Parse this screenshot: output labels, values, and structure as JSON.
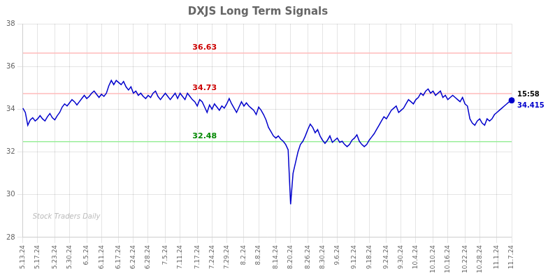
{
  "chart_data": {
    "type": "line",
    "title": "DXJS Long Term Signals",
    "categories": [
      "5.13.24",
      null,
      null,
      null,
      null,
      null,
      "5.17.24",
      null,
      null,
      null,
      null,
      null,
      null,
      "5.23.24",
      null,
      null,
      null,
      null,
      null,
      "5.30.24",
      null,
      null,
      null,
      null,
      null,
      null,
      "6.5.24",
      null,
      null,
      null,
      null,
      null,
      "6.11.24",
      null,
      null,
      null,
      null,
      null,
      null,
      "6.17.24",
      null,
      null,
      null,
      null,
      null,
      "6.24.24",
      null,
      null,
      null,
      null,
      null,
      "6.28.24",
      null,
      null,
      null,
      null,
      null,
      null,
      "7.5.24",
      null,
      null,
      null,
      null,
      null,
      "7.11.24",
      null,
      null,
      null,
      null,
      null,
      null,
      "7.17.24",
      null,
      null,
      null,
      null,
      null,
      "7.24.24",
      null,
      null,
      null,
      null,
      null,
      "7.29.24",
      null,
      null,
      null,
      null,
      null,
      null,
      "8.2.24",
      null,
      null,
      null,
      null,
      null,
      "8.8.24",
      null,
      null,
      null,
      null,
      null,
      null,
      "8.14.24",
      null,
      null,
      null,
      null,
      null,
      "8.20.24",
      null,
      null,
      null,
      null,
      null,
      null,
      "8.26.24",
      null,
      null,
      null,
      null,
      null,
      "8.30.24",
      null,
      null,
      null,
      null,
      null,
      "9.6.24",
      null,
      null,
      null,
      null,
      null,
      null,
      "9.12.24",
      null,
      null,
      null,
      null,
      null,
      "9.18.24",
      null,
      null,
      null,
      null,
      null,
      null,
      "9.24.24",
      null,
      null,
      null,
      null,
      null,
      "9.30.24",
      null,
      null,
      null,
      null,
      null,
      "10.4.24",
      null,
      null,
      null,
      null,
      null,
      null,
      "10.10.24",
      null,
      null,
      null,
      null,
      null,
      "10.16.24",
      null,
      null,
      null,
      null,
      null,
      null,
      "10.22.24",
      null,
      null,
      null,
      null,
      null,
      "10.28.24",
      null,
      null,
      null,
      null,
      null,
      null,
      "11.1.24",
      null,
      null,
      null,
      null,
      null,
      "11.7.24"
    ],
    "values": [
      34.05,
      33.85,
      33.25,
      33.5,
      33.6,
      33.45,
      33.55,
      33.7,
      33.55,
      33.45,
      33.65,
      33.8,
      33.6,
      33.5,
      33.7,
      33.85,
      34.1,
      34.25,
      34.15,
      34.3,
      34.45,
      34.35,
      34.2,
      34.35,
      34.5,
      34.65,
      34.5,
      34.6,
      34.75,
      34.85,
      34.7,
      34.55,
      34.7,
      34.6,
      34.75,
      35.1,
      35.35,
      35.15,
      35.35,
      35.25,
      35.15,
      35.3,
      35.05,
      34.9,
      35.05,
      34.75,
      34.85,
      34.65,
      34.75,
      34.6,
      34.5,
      34.65,
      34.55,
      34.75,
      34.85,
      34.6,
      34.45,
      34.6,
      34.75,
      34.6,
      34.45,
      34.6,
      34.75,
      34.5,
      34.75,
      34.6,
      34.45,
      34.75,
      34.6,
      34.45,
      34.35,
      34.15,
      34.45,
      34.35,
      34.1,
      33.85,
      34.2,
      34.0,
      34.25,
      34.1,
      33.95,
      34.15,
      34.05,
      34.25,
      34.5,
      34.25,
      34.05,
      33.85,
      34.1,
      34.35,
      34.15,
      34.3,
      34.15,
      34.05,
      33.95,
      33.75,
      34.1,
      33.95,
      33.75,
      33.5,
      33.15,
      32.95,
      32.75,
      32.65,
      32.75,
      32.6,
      32.5,
      32.35,
      32.1,
      29.55,
      31.0,
      31.5,
      32.0,
      32.35,
      32.5,
      32.75,
      33.05,
      33.3,
      33.15,
      32.9,
      33.05,
      32.75,
      32.55,
      32.4,
      32.55,
      32.75,
      32.45,
      32.55,
      32.65,
      32.45,
      32.5,
      32.35,
      32.25,
      32.35,
      32.55,
      32.65,
      32.8,
      32.5,
      32.35,
      32.25,
      32.35,
      32.55,
      32.7,
      32.85,
      33.05,
      33.25,
      33.45,
      33.65,
      33.55,
      33.75,
      33.95,
      34.05,
      34.15,
      33.85,
      33.95,
      34.05,
      34.25,
      34.45,
      34.35,
      34.25,
      34.45,
      34.55,
      34.75,
      34.65,
      34.85,
      34.95,
      34.75,
      34.85,
      34.65,
      34.75,
      34.85,
      34.55,
      34.65,
      34.45,
      34.55,
      34.65,
      34.55,
      34.45,
      34.35,
      34.55,
      34.25,
      34.15,
      33.55,
      33.35,
      33.25,
      33.45,
      33.55,
      33.35,
      33.25,
      33.55,
      33.45,
      33.55,
      33.75,
      33.85,
      33.95,
      34.05,
      34.15,
      34.25,
      34.35,
      34.415
    ],
    "color": "#0000cc",
    "reference_lines": [
      {
        "value": 36.63,
        "color": "#ffbbbb",
        "label_color": "#cc0000"
      },
      {
        "value": 34.73,
        "color": "#ffbbbb",
        "label_color": "#cc0000"
      },
      {
        "value": 32.48,
        "color": "#99ee99",
        "label_color": "#008800"
      }
    ],
    "current_point": {
      "value": 34.415,
      "label": "15:58",
      "color": "#0000cc"
    },
    "watermark": "Stock Traders Daily",
    "watermark_color": "#bbbbbb",
    "ylim": [
      28,
      38
    ],
    "yticks": [
      28,
      30,
      32,
      34,
      36,
      38
    ],
    "grid": true
  }
}
